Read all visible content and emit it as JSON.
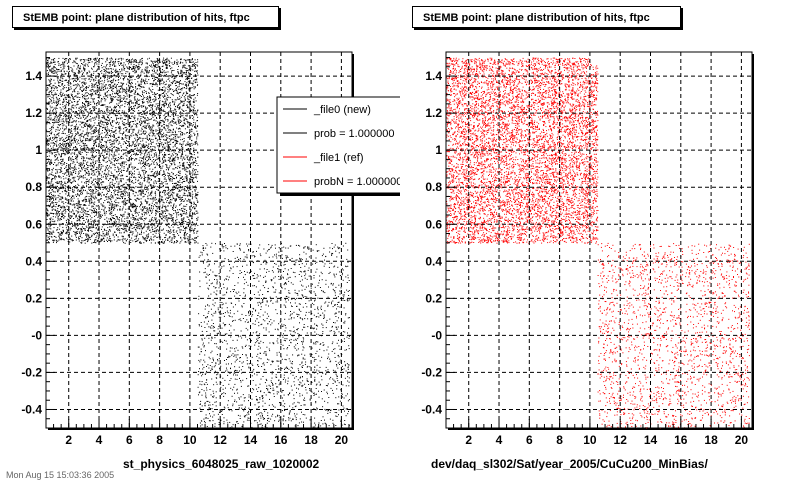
{
  "chart_data": [
    {
      "type": "scatter",
      "title": "StEMB point: plane distribution of hits, ftpc",
      "xlabel": "st_physics_6048025_raw_1020002",
      "xlim": [
        0.5,
        20.7
      ],
      "ylim": [
        -0.5,
        1.53
      ],
      "x_ticks": [
        2,
        4,
        6,
        8,
        10,
        12,
        14,
        16,
        18,
        20
      ],
      "y_ticks": [
        -0.4,
        -0.2,
        0,
        0.2,
        0.4,
        0.6,
        0.8,
        1,
        1.2,
        1.4
      ],
      "y_tick_labels": [
        "-0.4",
        "-0.2",
        "-0",
        "0.2",
        "0.4",
        "0.6",
        "0.8",
        "1",
        "1.2",
        "1.4"
      ],
      "grid": true,
      "series": [
        {
          "name": "_file0 (new)",
          "color": "#000000",
          "regions": [
            {
              "x": [
                0.5,
                10.5
              ],
              "y": [
                0.5,
                1.5
              ],
              "density": "high"
            },
            {
              "x": [
                10.5,
                20.5
              ],
              "y": [
                -0.5,
                0.5
              ],
              "density": "low"
            }
          ]
        },
        {
          "name": "_file1 (ref)",
          "color": "#ff0000",
          "regions": []
        }
      ],
      "legend": {
        "placement": "top-right",
        "entries": [
          {
            "label": "_file0 (new)",
            "color": "#000000"
          },
          {
            "label": "prob = 1.000000",
            "color": "#000000"
          },
          {
            "label": "_file1 (ref)",
            "color": "#ff0000"
          },
          {
            "label": "probN = 1.000000",
            "color": "#ff0000"
          }
        ]
      }
    },
    {
      "type": "scatter",
      "title": "StEMB point: plane distribution of hits, ftpc",
      "xlabel": "dev/daq_sl302/Sat/year_2005/CuCu200_MinBias/",
      "xlim": [
        0.5,
        20.7
      ],
      "ylim": [
        -0.5,
        1.53
      ],
      "x_ticks": [
        2,
        4,
        6,
        8,
        10,
        12,
        14,
        16,
        18,
        20
      ],
      "y_ticks": [
        -0.4,
        -0.2,
        0,
        0.2,
        0.4,
        0.6,
        0.8,
        1,
        1.2,
        1.4
      ],
      "y_tick_labels": [
        "-0.4",
        "-0.2",
        "-0",
        "0.2",
        "0.4",
        "0.6",
        "0.8",
        "1",
        "1.2",
        "1.4"
      ],
      "grid": true,
      "series": [
        {
          "name": "_file1 (ref)",
          "color": "#ff0000",
          "regions": [
            {
              "x": [
                0.5,
                10.5
              ],
              "y": [
                0.5,
                1.5
              ],
              "density": "high"
            },
            {
              "x": [
                10.5,
                20.5
              ],
              "y": [
                -0.5,
                0.5
              ],
              "density": "low"
            }
          ]
        }
      ]
    }
  ],
  "footer": "Mon Aug 15 15:03:36 2005"
}
